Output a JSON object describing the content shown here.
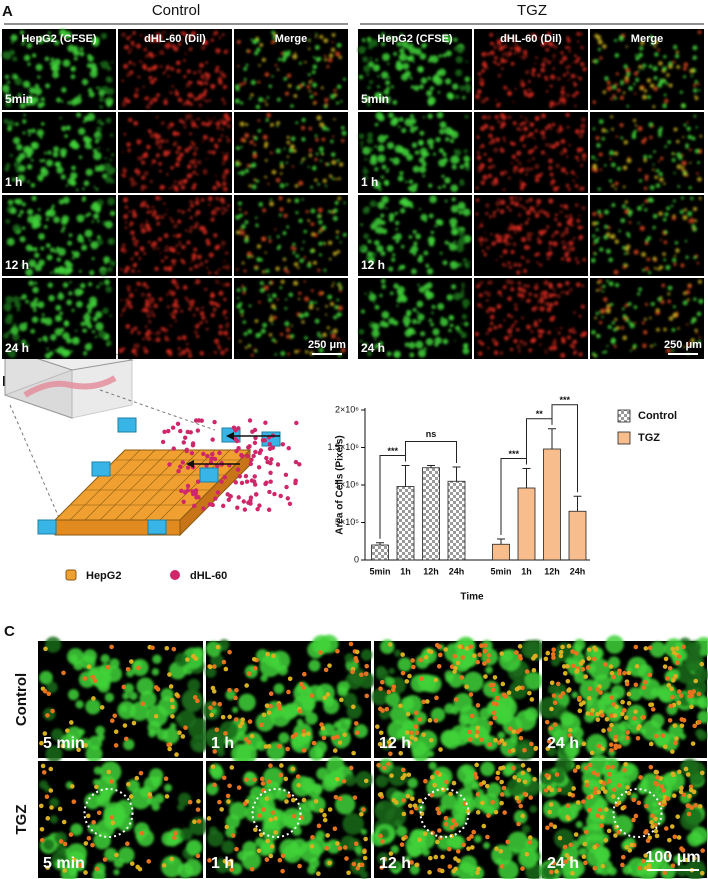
{
  "panel_a": {
    "letter": "A",
    "groups": [
      "Control",
      "TGZ"
    ],
    "columns": [
      "HepG2 (CFSE)",
      "dHL-60 (Dil)",
      "Merge"
    ],
    "rows": [
      "5min",
      "1 h",
      "12 h",
      "24 h"
    ],
    "scale_bar": "250 μm"
  },
  "panel_b": {
    "letter": "B",
    "legend_items": [
      "HepG2",
      "dHL-60"
    ]
  },
  "chart_data": {
    "type": "bar",
    "ylabel": "Area of Cells (Pixels)",
    "xlabel": "Time",
    "categories": [
      "5min",
      "1h",
      "12h",
      "24h"
    ],
    "series": [
      {
        "name": "Control",
        "color": "#9a9a9a",
        "pattern": "checker",
        "values": [
          200000,
          980000,
          1230000,
          1050000
        ],
        "errors": [
          30000,
          280000,
          30000,
          190000
        ]
      },
      {
        "name": "TGZ",
        "color": "#f7bd8c",
        "values": [
          210000,
          960000,
          1480000,
          650000
        ],
        "errors": [
          70000,
          260000,
          270000,
          200000
        ]
      }
    ],
    "ylim": [
      0,
      2000000
    ],
    "yticks": [
      0,
      {
        "value": 500000,
        "label": "5×10⁵"
      },
      {
        "value": 1000000,
        "label": "1×10⁶"
      },
      {
        "value": 1500000,
        "label": "1.5×10⁶"
      },
      {
        "value": 2000000,
        "label": "2×10⁶"
      }
    ],
    "annotations": [
      {
        "text": "***",
        "series": 0,
        "from": 0,
        "to": 1
      },
      {
        "text": "ns",
        "series": 0,
        "from": 1,
        "to": 3
      },
      {
        "text": "***",
        "series": 1,
        "from": 0,
        "to": 1
      },
      {
        "text": "**",
        "series": 1,
        "from": 1,
        "to": 2
      },
      {
        "text": "***",
        "series": 1,
        "from": 2,
        "to": 3
      }
    ],
    "legend": "top-right"
  },
  "panel_c": {
    "letter": "C",
    "rows": [
      "Control",
      "TGZ"
    ],
    "times": [
      "5 min",
      "1 h",
      "12 h",
      "24 h"
    ],
    "scale_bar": "100 μm"
  }
}
